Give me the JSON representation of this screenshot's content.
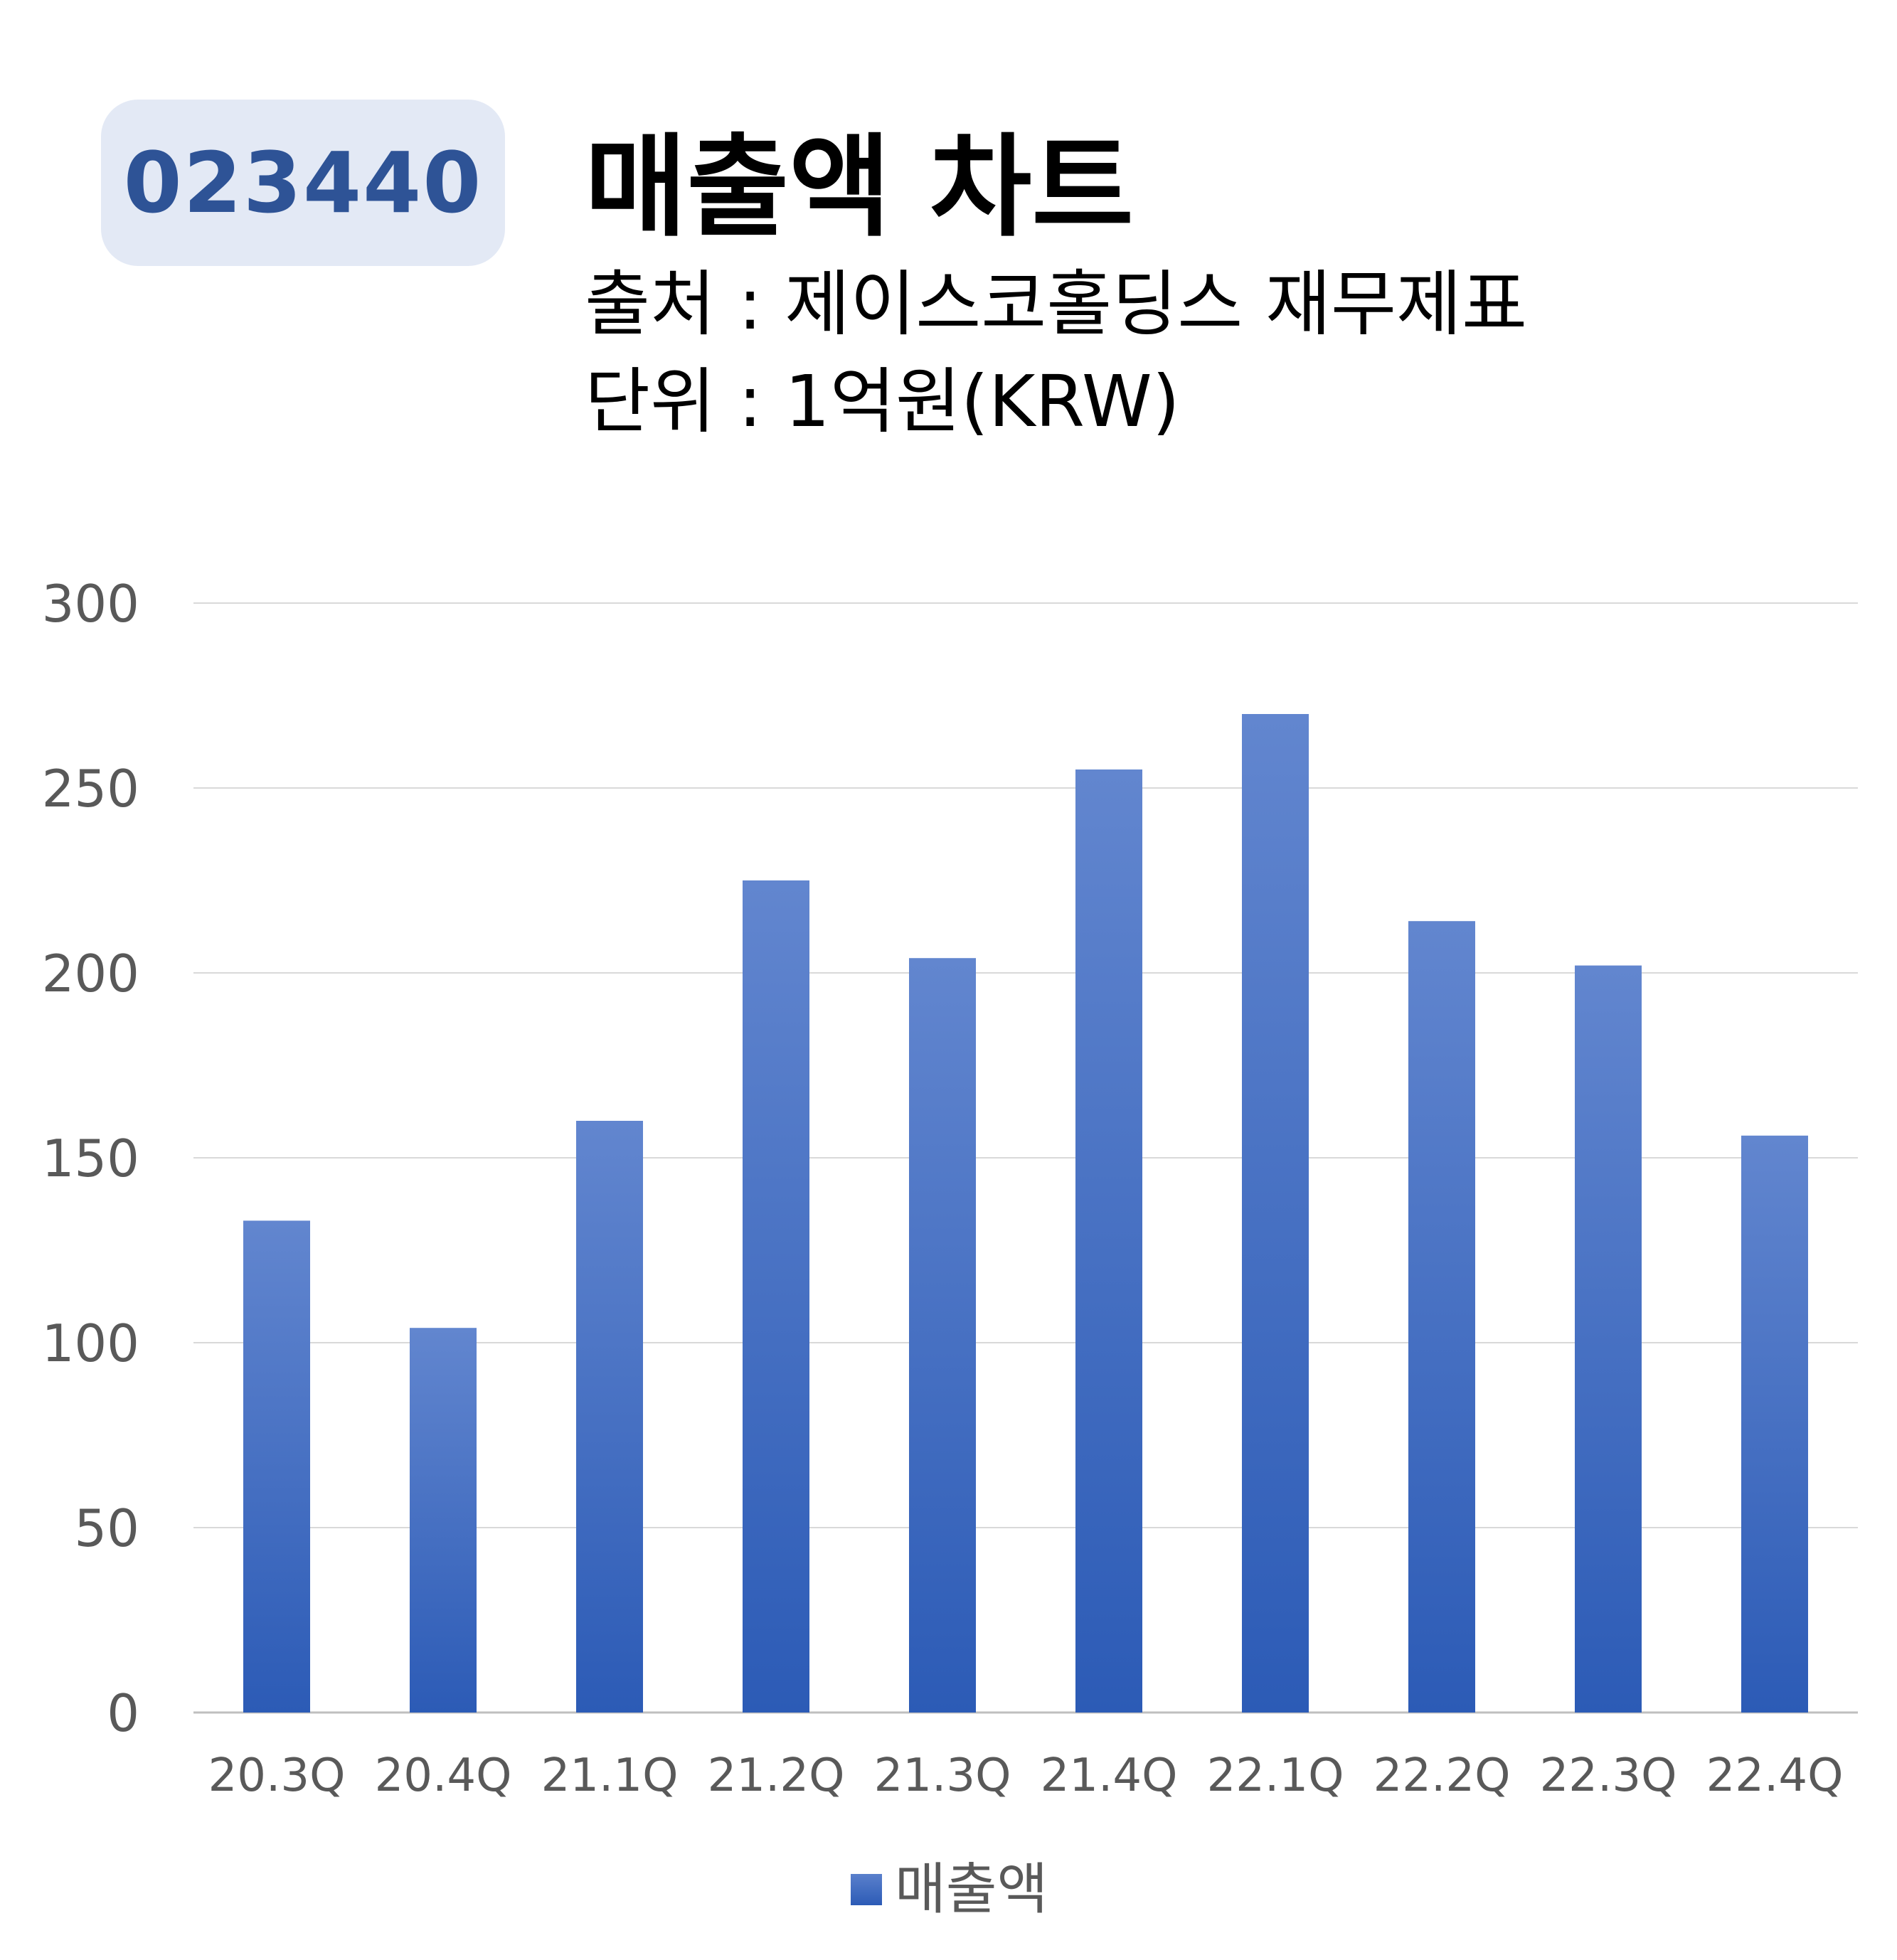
{
  "header": {
    "code": "023440",
    "title": "매출액 차트",
    "source": "출처 : 제이스코홀딩스 재무제표",
    "unit": "단위 : 1억원(KRW)"
  },
  "chart_data": {
    "type": "bar",
    "categories": [
      "20.3Q",
      "20.4Q",
      "21.1Q",
      "21.2Q",
      "21.3Q",
      "21.4Q",
      "22.1Q",
      "22.2Q",
      "22.3Q",
      "22.4Q"
    ],
    "series": [
      {
        "name": "매출액",
        "values": [
          133,
          104,
          160,
          225,
          204,
          255,
          270,
          214,
          202,
          156
        ]
      }
    ],
    "yticks": [
      0,
      50,
      100,
      150,
      200,
      250,
      300
    ],
    "ylim": [
      0,
      300
    ],
    "grid": true,
    "legend_position": "bottom",
    "colors": {
      "bar_top": "#6286cf",
      "bar_bottom": "#2c5bb6",
      "grid": "#d9d9d9",
      "axis": "#bfbfbf",
      "tick_text": "#595959"
    }
  }
}
